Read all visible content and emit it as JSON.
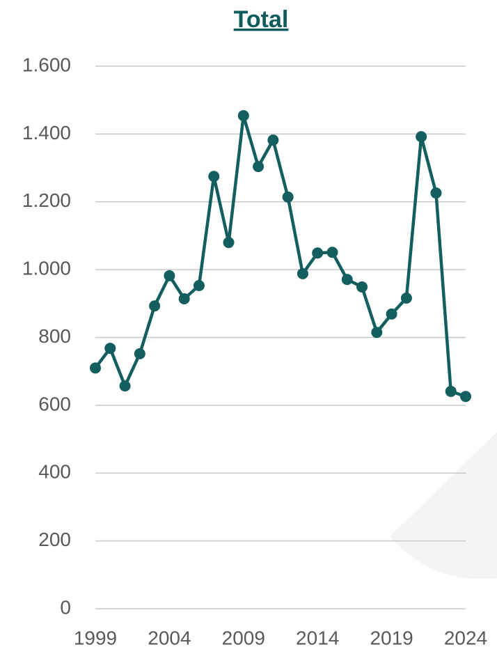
{
  "chart_data": {
    "type": "line",
    "title": "Total",
    "x": [
      1999,
      2000,
      2001,
      2002,
      2003,
      2004,
      2005,
      2006,
      2007,
      2008,
      2009,
      2010,
      2011,
      2012,
      2013,
      2014,
      2015,
      2016,
      2017,
      2018,
      2019,
      2020,
      2021,
      2022,
      2023,
      2024
    ],
    "series": [
      {
        "name": "Total",
        "color": "#135e5e",
        "values": [
          710,
          768,
          657,
          752,
          893,
          982,
          914,
          953,
          1275,
          1080,
          1454,
          1304,
          1382,
          1214,
          988,
          1049,
          1051,
          971,
          949,
          815,
          869,
          916,
          1392,
          1226,
          641,
          626
        ]
      }
    ],
    "xlim": [
      1999,
      2024
    ],
    "xticks": [
      1999,
      2004,
      2009,
      2014,
      2019,
      2024
    ],
    "ylim": [
      0,
      1600
    ],
    "yticks": [
      0,
      200,
      400,
      600,
      800,
      {
        "value": 1000,
        "label": "1.000"
      },
      {
        "value": 1200,
        "label": "1.200"
      },
      {
        "value": 1400,
        "label": "1.400"
      },
      {
        "value": 1600,
        "label": "1.600"
      }
    ],
    "grid": true
  }
}
